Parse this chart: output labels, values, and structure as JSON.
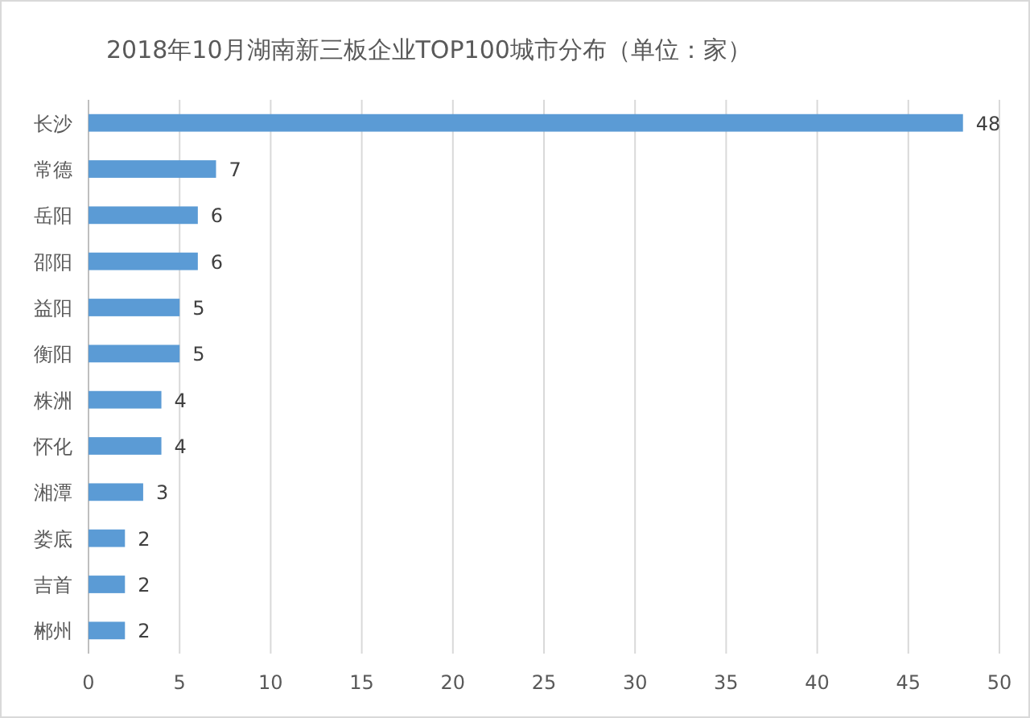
{
  "chart_data": {
    "type": "bar",
    "orientation": "horizontal",
    "title": "2018年10月湖南新三板企业TOP100城市分布（单位：家）",
    "categories": [
      "长沙",
      "常德",
      "岳阳",
      "邵阳",
      "益阳",
      "衡阳",
      "株洲",
      "怀化",
      "湘潭",
      "娄底",
      "吉首",
      "郴州"
    ],
    "values": [
      48,
      7,
      6,
      6,
      5,
      5,
      4,
      4,
      3,
      2,
      2,
      2
    ],
    "color": "#5b9bd5",
    "xlim": [
      0,
      50
    ],
    "xticks": [
      0,
      5,
      10,
      15,
      20,
      25,
      30,
      35,
      40,
      45,
      50
    ],
    "grid": "x",
    "data_labels": true
  }
}
